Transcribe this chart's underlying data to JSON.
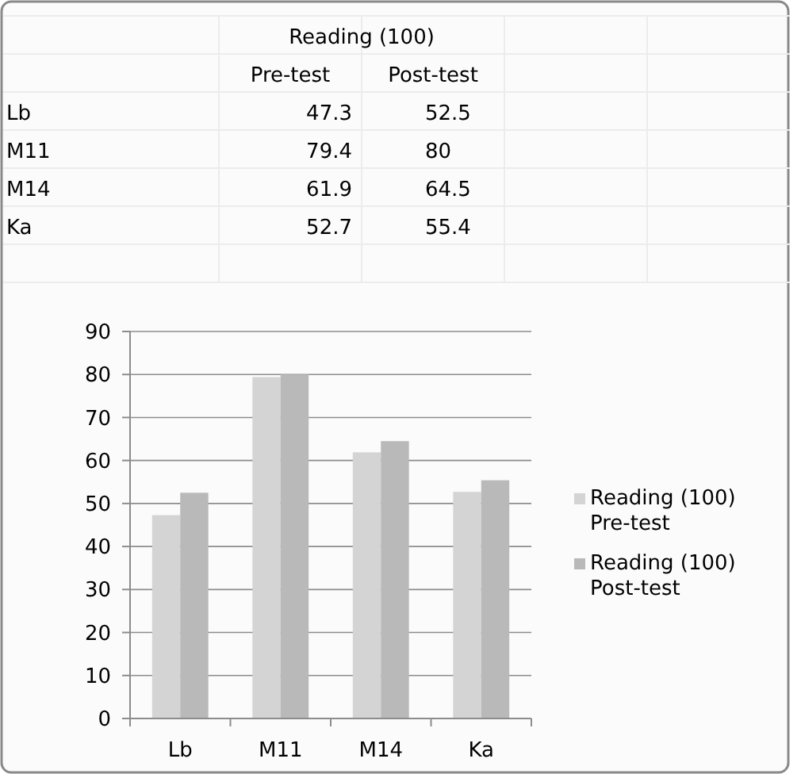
{
  "chart_data": [
    {
      "type": "other",
      "title": "Reading (100)",
      "categories": [
        "Pre-test",
        "Post-test"
      ],
      "y_categories": [
        "Lb",
        "M11",
        "M14",
        "Ka"
      ],
      "cells": [
        [
          "47.3",
          "52.5"
        ],
        [
          "79.4",
          "80"
        ],
        [
          "61.9",
          "64.5"
        ],
        [
          "52.7",
          "55.4"
        ]
      ]
    },
    {
      "type": "bar",
      "categories": [
        "Lb",
        "M11",
        "M14",
        "Ka"
      ],
      "series": [
        {
          "name": "Reading (100) Pre-test",
          "color": "#d4d4d4",
          "values": [
            47.3,
            79.4,
            61.9,
            52.7
          ]
        },
        {
          "name": "Reading (100) Post-test",
          "color": "#b9b9b9",
          "values": [
            52.5,
            80,
            64.5,
            55.4
          ]
        }
      ],
      "ylim": [
        0,
        90
      ],
      "yticks": [
        0,
        10,
        20,
        30,
        40,
        50,
        60,
        70,
        80,
        90
      ],
      "grid": "y",
      "legend": "right"
    }
  ]
}
